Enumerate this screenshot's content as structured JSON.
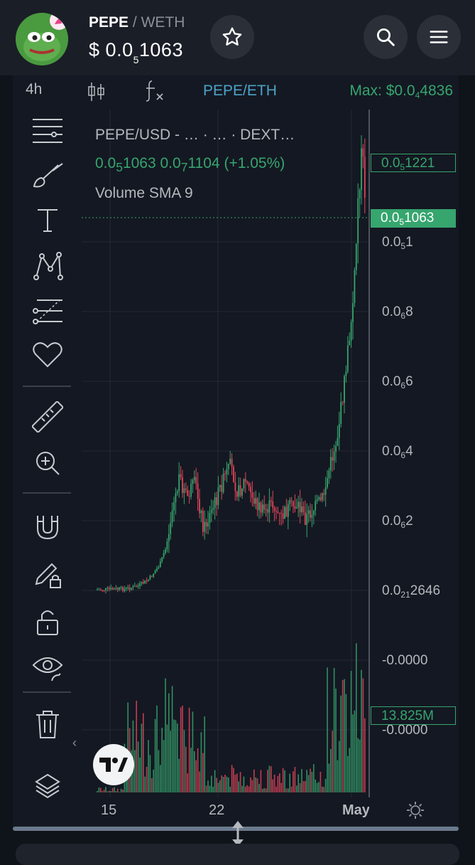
{
  "header": {
    "base_token": "PEPE",
    "separator": "/",
    "quote_token": "WETH",
    "price_prefix": "$",
    "price_lead": "0.0",
    "price_zeros": "5",
    "price_digits": "1063",
    "accent": "#36a56e"
  },
  "icons": [
    "pepe-avatar",
    "star-icon",
    "search-icon",
    "menu-icon",
    "candles-icon",
    "indicators-icon",
    "gear-icon",
    "resize-icon"
  ],
  "timeframe_bar": {
    "interval": "4h",
    "pair_link": "PEPE/ETH",
    "max_label": "Max: $0.0",
    "max_zeros": "4",
    "max_digits": "4836"
  },
  "toolbar": {
    "tools": [
      "lines",
      "brush",
      "text",
      "pattern",
      "fib",
      "favorites",
      "ruler",
      "zoom",
      "magnet",
      "lock-drawings",
      "unlock",
      "hide-drawings",
      "trash",
      "layers"
    ]
  },
  "legend": {
    "line1": "PEPE/USD - … · …  · DEXT…",
    "price_lead": "0.0",
    "price_zeros": "5",
    "price_digits": "1063",
    "change_lead": "0.0",
    "change_zeros": "7",
    "change_digits": "1104",
    "change_pct": "(+1.05%)",
    "volume_label": "Volume SMA 9"
  },
  "price_axis": {
    "labels": [
      {
        "lead": "0.0",
        "zeros": "5",
        "digits": "1"
      },
      {
        "lead": "0.0",
        "zeros": "6",
        "digits": "8"
      },
      {
        "lead": "0.0",
        "zeros": "6",
        "digits": "6"
      },
      {
        "lead": "0.0",
        "zeros": "6",
        "digits": "4"
      },
      {
        "lead": "0.0",
        "zeros": "6",
        "digits": "2"
      },
      {
        "lead": "0.0",
        "zeros": "21",
        "digits": "2646"
      },
      {
        "lead": "-0.0000",
        "zeros": "",
        "digits": ""
      },
      {
        "lead": "-0.0000",
        "zeros": "",
        "digits": ""
      }
    ],
    "high_label": {
      "lead": "0.0",
      "zeros": "5",
      "digits": "1221"
    },
    "last_label": {
      "lead": "0.0",
      "zeros": "5",
      "digits": "1063"
    },
    "volume_label": "13.825M"
  },
  "time_axis": {
    "labels": [
      "15",
      "22",
      "May"
    ]
  },
  "colors": {
    "up": "#36a56e",
    "down": "#e0455a",
    "background": "#141822",
    "grid": "#232833"
  }
}
